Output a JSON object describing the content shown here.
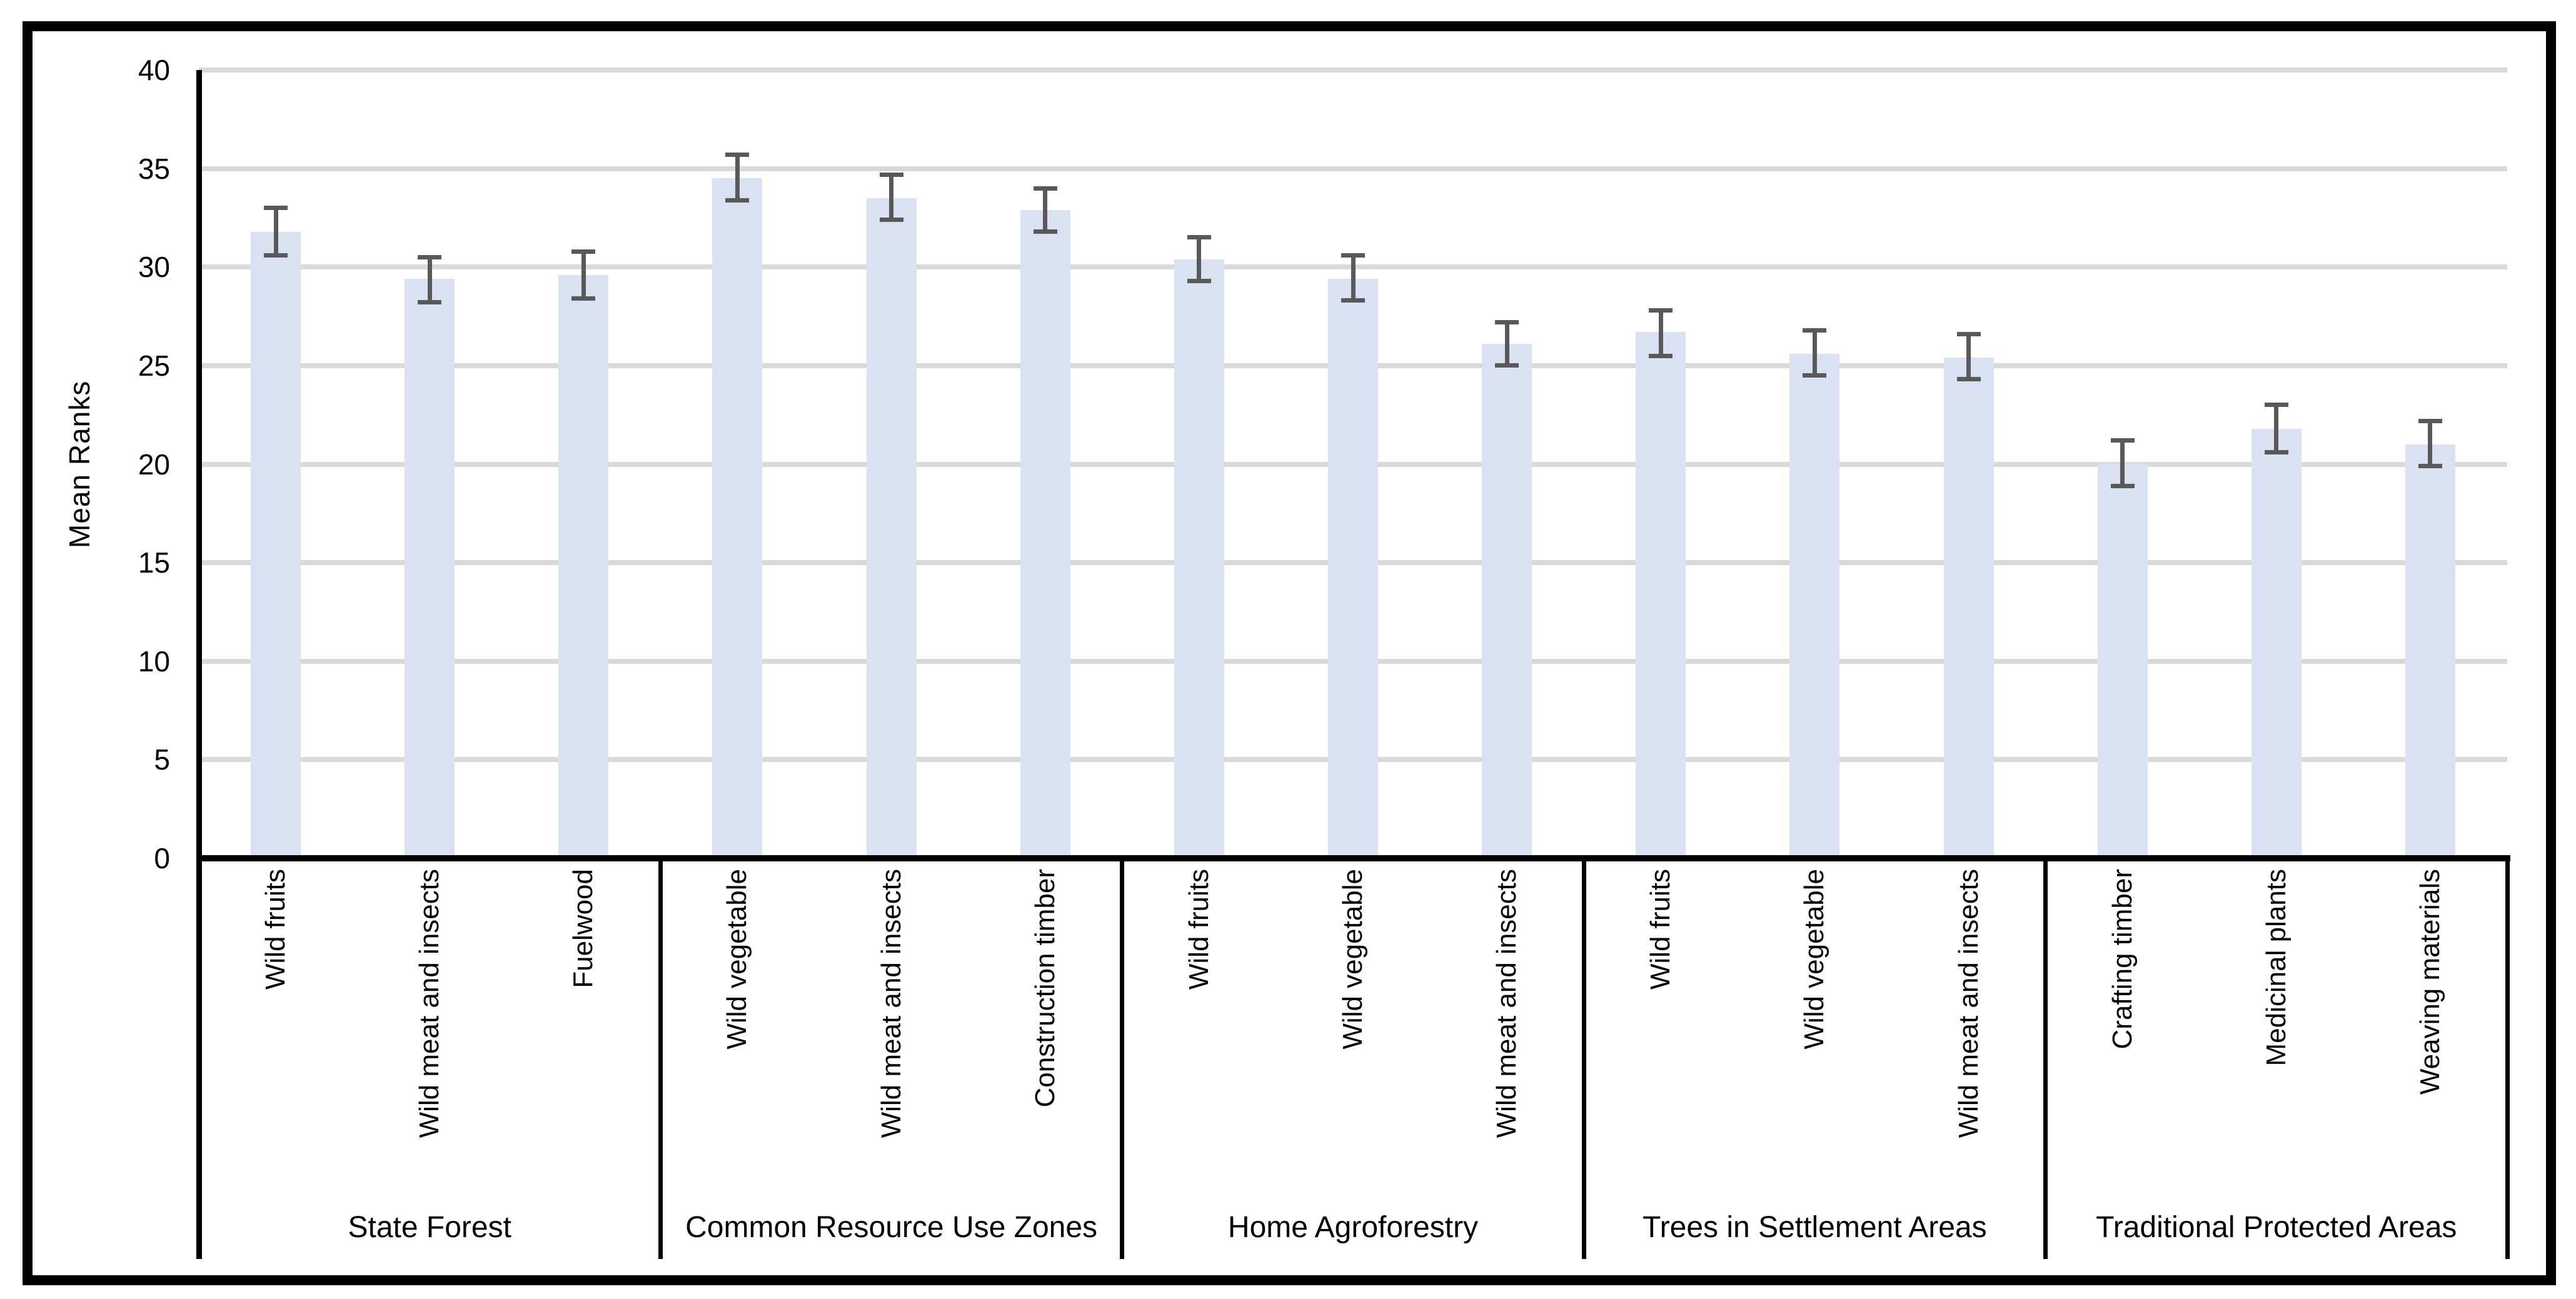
{
  "figure": {
    "background": "#ffffff",
    "border_color": "#000000"
  },
  "chart_data": {
    "type": "bar",
    "title": "",
    "xlabel": "",
    "ylabel": "Mean Ranks",
    "ylim": [
      0,
      40
    ],
    "yticks": [
      0,
      5,
      10,
      15,
      20,
      25,
      30,
      35,
      40
    ],
    "grid": "horizontal-only",
    "legend": "none",
    "bar_color": "#D9E1F2",
    "error_bar_color": "#595959",
    "gridline_color": "#D9D9D9",
    "axis_color": "#000000",
    "groups": [
      {
        "label": "State Forest",
        "items": [
          {
            "label": "Wild fruits",
            "value": 31.8,
            "err_low": 30.6,
            "err_high": 33.0
          },
          {
            "label": "Wild meat and insects",
            "value": 29.4,
            "err_low": 28.2,
            "err_high": 30.5
          },
          {
            "label": "Fuelwood",
            "value": 29.6,
            "err_low": 28.4,
            "err_high": 30.8
          }
        ]
      },
      {
        "label": "Common Resource Use Zones",
        "items": [
          {
            "label": "Wild vegetable",
            "value": 34.5,
            "err_low": 33.4,
            "err_high": 35.7
          },
          {
            "label": "Wild meat and insects",
            "value": 33.5,
            "err_low": 32.4,
            "err_high": 34.7
          },
          {
            "label": "Construction timber",
            "value": 32.9,
            "err_low": 31.8,
            "err_high": 34.0
          }
        ]
      },
      {
        "label": "Home Agroforestry",
        "items": [
          {
            "label": "Wild fruits",
            "value": 30.4,
            "err_low": 29.3,
            "err_high": 31.5
          },
          {
            "label": "Wild vegetable",
            "value": 29.4,
            "err_low": 28.3,
            "err_high": 30.6
          },
          {
            "label": "Wild meat and insects",
            "value": 26.1,
            "err_low": 25.0,
            "err_high": 27.2
          }
        ]
      },
      {
        "label": "Trees in Settlement Areas",
        "items": [
          {
            "label": "Wild fruits",
            "value": 26.7,
            "err_low": 25.5,
            "err_high": 27.8
          },
          {
            "label": "Wild vegetable",
            "value": 25.6,
            "err_low": 24.5,
            "err_high": 26.8
          },
          {
            "label": "Wild meat and insects",
            "value": 25.4,
            "err_low": 24.3,
            "err_high": 26.6
          }
        ]
      },
      {
        "label": "Traditional Protected Areas",
        "items": [
          {
            "label": "Crafting timber",
            "value": 20.0,
            "err_low": 18.9,
            "err_high": 21.2
          },
          {
            "label": "Medicinal plants",
            "value": 21.8,
            "err_low": 20.6,
            "err_high": 23.0
          },
          {
            "label": "Weaving materials",
            "value": 21.0,
            "err_low": 19.9,
            "err_high": 22.2
          }
        ]
      }
    ]
  }
}
